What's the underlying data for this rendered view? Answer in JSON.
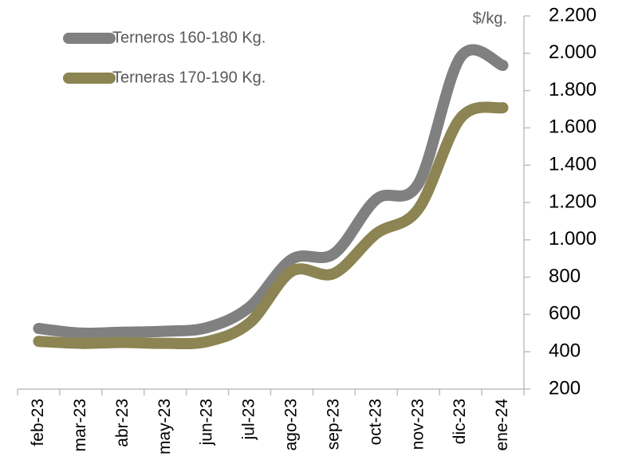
{
  "chart_data": {
    "type": "line",
    "y_unit_label": "$/kg.",
    "categories": [
      "feb-23",
      "mar-23",
      "abr-23",
      "may-23",
      "jun-23",
      "jul-23",
      "ago-23",
      "sep-23",
      "oct-23",
      "nov-23",
      "dic-23",
      "ene-24"
    ],
    "series": [
      {
        "name": "Terneros 160-180 Kg.",
        "color": "#808080",
        "values": [
          525,
          500,
          505,
          510,
          530,
          640,
          896,
          926,
          1217,
          1302,
          1980,
          1935
        ]
      },
      {
        "name": "Terneras 170-190 Kg.",
        "color": "#8c8452",
        "values": [
          456,
          445,
          450,
          445,
          455,
          555,
          832,
          820,
          1033,
          1166,
          1653,
          1708
        ]
      }
    ],
    "ylim": [
      200,
      2200
    ],
    "yticks": [
      200,
      400,
      600,
      800,
      {
        "value": 1000,
        "label": "1.000"
      },
      {
        "value": 1200,
        "label": "1.200"
      },
      {
        "value": 1400,
        "label": "1.400"
      },
      {
        "value": 1600,
        "label": "1.600"
      },
      {
        "value": 1800,
        "label": "1.800"
      },
      {
        "value": 2000,
        "label": "2.000"
      },
      {
        "value": 2200,
        "label": "2.200"
      }
    ],
    "legend": "upper-left",
    "grid": false
  }
}
